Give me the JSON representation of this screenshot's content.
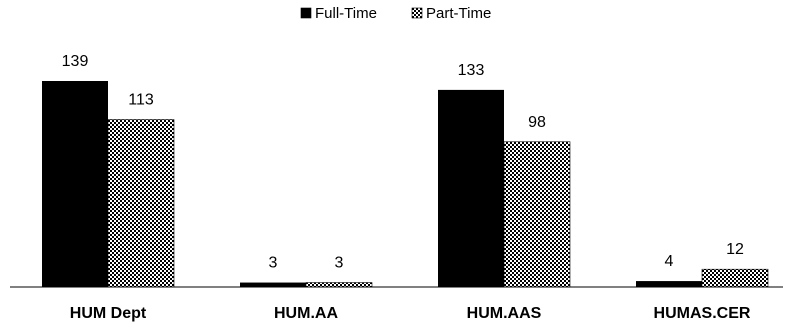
{
  "chart_data": {
    "type": "bar",
    "title": "",
    "xlabel": "",
    "ylabel": "",
    "categories": [
      "HUM Dept",
      "HUM.AA",
      "HUM.AAS",
      "HUMAS.CER"
    ],
    "series": [
      {
        "name": "Full-Time",
        "values": [
          139,
          3,
          133,
          4
        ],
        "color": "#000000",
        "pattern": "solid"
      },
      {
        "name": "Part-Time",
        "values": [
          113,
          3,
          98,
          12
        ],
        "color": "#000000",
        "pattern": "checkered"
      }
    ],
    "ylim": [
      0,
      150
    ],
    "grid": false,
    "legend": "top-center",
    "data_labels": true
  }
}
